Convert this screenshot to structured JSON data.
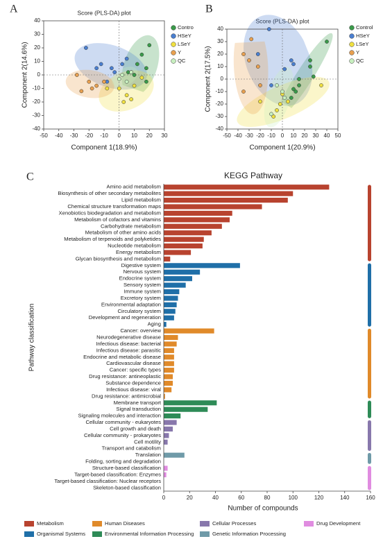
{
  "chart_data": [
    {
      "type": "scatter",
      "panel_label": "A",
      "title": "Score (PLS-DA) plot",
      "x_label": "Component 1(18.9%)",
      "y_label": "Component 2(14.6%)",
      "xlim": [
        -50,
        30
      ],
      "xticks": [
        -50,
        -40,
        -30,
        -20,
        -10,
        0,
        10,
        20,
        30
      ],
      "ylim": [
        -40,
        40
      ],
      "yticks": [
        -40,
        -30,
        -20,
        -10,
        0,
        10,
        20,
        30,
        40
      ],
      "series": [
        {
          "name": "Contro",
          "color": "#3a9a4a",
          "x": [
            15,
            20,
            18,
            12,
            10,
            18,
            6
          ],
          "y": [
            15,
            22,
            5,
            8,
            0,
            -5,
            2
          ]
        },
        {
          "name": "HSeY",
          "color": "#4a7fd0",
          "x": [
            -22,
            -15,
            -8,
            -5,
            -12,
            -3,
            2,
            8,
            5
          ],
          "y": [
            20,
            5,
            -5,
            5,
            8,
            2,
            8,
            2,
            12
          ]
        },
        {
          "name": "LSeY",
          "color": "#f0e040",
          "x": [
            0,
            5,
            8,
            10,
            -8,
            3,
            15
          ],
          "y": [
            -10,
            -15,
            -18,
            -8,
            -10,
            -20,
            -2
          ]
        },
        {
          "name": "Y",
          "color": "#e8a050",
          "x": [
            -28,
            -20,
            -18,
            -15,
            -25,
            -10
          ],
          "y": [
            0,
            -5,
            -10,
            -8,
            -12,
            -5
          ]
        },
        {
          "name": "QC",
          "color": "#c8f0c0",
          "x": [
            2,
            5,
            0,
            8
          ],
          "y": [
            0,
            -5,
            -3,
            2
          ]
        }
      ]
    },
    {
      "type": "scatter",
      "panel_label": "B",
      "title": "Score (PLS-DA) plot",
      "x_label": "Component 1(20.9%)",
      "y_label": "Component 2(17.5%)",
      "xlim": [
        -50,
        50
      ],
      "xticks": [
        -50,
        -40,
        -30,
        -20,
        -10,
        0,
        10,
        20,
        30,
        40,
        50
      ],
      "ylim": [
        -40,
        40
      ],
      "yticks": [
        -40,
        -30,
        -20,
        -10,
        0,
        10,
        20,
        30,
        40
      ],
      "series": [
        {
          "name": "Control",
          "color": "#3a9a4a",
          "x": [
            40,
            25,
            25,
            28,
            15,
            12,
            8,
            15,
            10
          ],
          "y": [
            30,
            15,
            10,
            2,
            0,
            -10,
            -15,
            -5,
            -8
          ]
        },
        {
          "name": "HSeY",
          "color": "#4a7fd0",
          "x": [
            -12,
            -22,
            8,
            10,
            -10,
            2
          ],
          "y": [
            40,
            20,
            15,
            12,
            -5,
            8
          ]
        },
        {
          "name": "LSeY",
          "color": "#f0e040",
          "x": [
            -20,
            -5,
            -2,
            0,
            5,
            35,
            -8
          ],
          "y": [
            -18,
            -25,
            -20,
            -12,
            -18,
            -5,
            -30
          ]
        },
        {
          "name": "Y",
          "color": "#e8a050",
          "x": [
            -28,
            -35,
            -30,
            -22,
            -35,
            -20
          ],
          "y": [
            32,
            20,
            15,
            10,
            -10,
            -5
          ]
        },
        {
          "name": "QC",
          "color": "#c8f0c0",
          "x": [
            -10,
            -5,
            0,
            2
          ],
          "y": [
            -28,
            -5,
            -10,
            -15
          ]
        }
      ]
    },
    {
      "type": "hbar",
      "panel_label": "C",
      "title": "KEGG Pathway",
      "x_label": "Number of compounds",
      "y_label": "Pathway classification",
      "xlim": [
        0,
        160
      ],
      "xticks": [
        0,
        20,
        40,
        60,
        80,
        100,
        120,
        140,
        160
      ],
      "series": [
        {
          "name": "Metabolism",
          "color": "#b8432f",
          "categories": [
            "Amino acid metabolism",
            "Biosynthesis of other secondary metabolites",
            "Lipid metabolism",
            "Chemical structure transformation maps",
            "Xenobiotics biodegradation and metabolism",
            "Metabolism of cofactors and vitamins",
            "Carbohydrate metabolism",
            "Metabolism of other amino acids",
            "Metabolism of terpenoids and polyketides",
            "Nucleotide metabolism",
            "Energy metabolism",
            "Glycan biosynthesis and metabolism"
          ],
          "values": [
            128,
            100,
            96,
            76,
            53,
            51,
            45,
            37,
            31,
            30,
            21,
            5
          ]
        },
        {
          "name": "Organismal Systems",
          "color": "#1f6fa8",
          "categories": [
            "Digestive system",
            "Nervous system",
            "Endocrine system",
            "Sensory system",
            "Immune system",
            "Excretory system",
            "Environmental adaptation",
            "Circulatory system",
            "Development and regeneration",
            "Aging"
          ],
          "values": [
            59,
            28,
            22,
            17,
            12,
            11,
            10,
            9,
            8,
            2
          ]
        },
        {
          "name": "Human Diseases",
          "color": "#e08a2a",
          "categories": [
            "Cancer: overview",
            "Neurodegenerative disease",
            "Infectious disease: bacterial",
            "Infectious disease: parasitic",
            "Endocrine and metabolic disease",
            "Cardiovascular disease",
            "Cancer: specific types",
            "Drug resistance: antineoplastic",
            "Substance dependence",
            "Infectious disease: viral",
            "Drug resistance: antimicrobial"
          ],
          "values": [
            39,
            11,
            10,
            8,
            8,
            8,
            8,
            7,
            7,
            6,
            1
          ]
        },
        {
          "name": "Environmental Information Processing",
          "color": "#2e8b57",
          "categories": [
            "Membrane transport",
            "Signal transduction",
            "Signaling molecules and interaction"
          ],
          "values": [
            41,
            34,
            13
          ]
        },
        {
          "name": "Cellular Processes",
          "color": "#8878ac",
          "categories": [
            "Cellular community - eukaryotes",
            "Cell growth and death",
            "Cellular community - prokaryotes",
            "Cell motility",
            "Transport and catabolism"
          ],
          "values": [
            10,
            7,
            4,
            3,
            0
          ]
        },
        {
          "name": "Genetic Information Processing",
          "color": "#6f9aa8",
          "categories": [
            "Translation",
            "Folding, sorting and degradation"
          ],
          "values": [
            16,
            0
          ]
        },
        {
          "name": "Drug Development",
          "color": "#e08ce0",
          "categories": [
            "Structure-based classification",
            "Target-based classification: Enzymes",
            "Target-based classification: Nuclear receptors",
            "Skeleton-based classification"
          ],
          "values": [
            3,
            2,
            0,
            0
          ]
        }
      ]
    }
  ]
}
